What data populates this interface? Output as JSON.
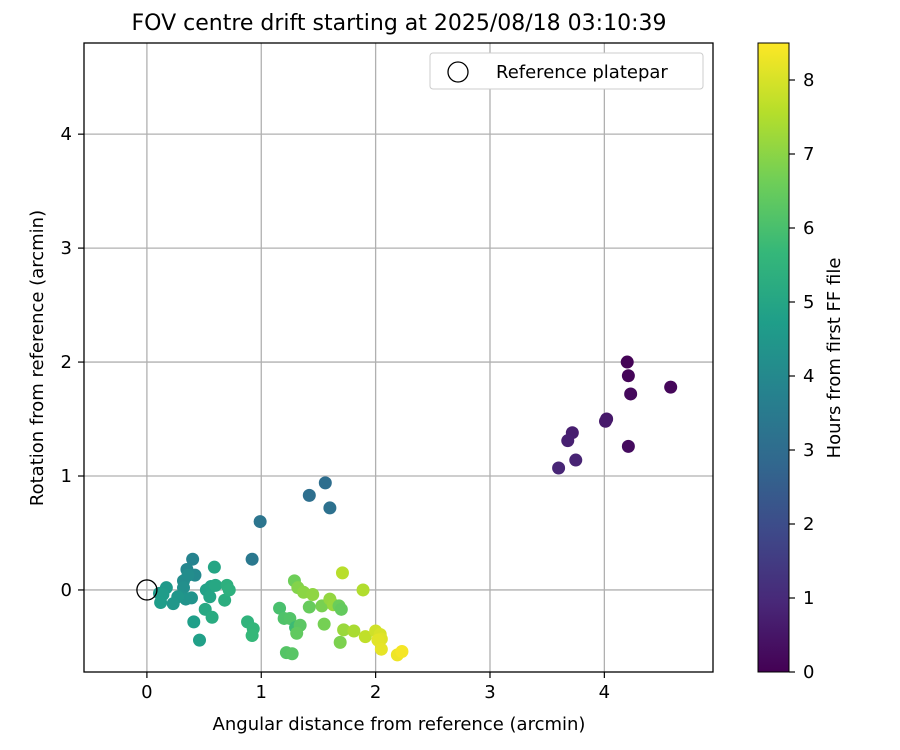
{
  "chart_data": {
    "type": "scatter",
    "title": "FOV centre drift starting at 2025/08/18 03:10:39",
    "xlabel": "Angular distance from reference (arcmin)",
    "ylabel": "Rotation from reference (arcmin)",
    "xlim": [
      -0.55,
      4.95
    ],
    "ylim": [
      -0.72,
      4.8
    ],
    "xticks": [
      0,
      1,
      2,
      3,
      4
    ],
    "yticks": [
      0,
      1,
      2,
      3,
      4
    ],
    "grid": true,
    "legend": {
      "placement": "top-right",
      "entries": [
        "Reference platepar"
      ]
    },
    "reference_point": {
      "name": "Reference platepar",
      "x": 0,
      "y": 0
    },
    "colorbar": {
      "label": "Hours from first FF file",
      "colormap": "viridis",
      "range": [
        0,
        8.5
      ],
      "ticks": [
        0,
        1,
        2,
        3,
        4,
        5,
        6,
        7,
        8
      ],
      "colors": [
        "#440154",
        "#482878",
        "#3e4989",
        "#31688e",
        "#26828e",
        "#1f9e89",
        "#35b779",
        "#6ece58",
        "#b5de2b",
        "#fde725"
      ]
    },
    "points": [
      {
        "x": 4.2,
        "y": 2.0,
        "c": 0.05
      },
      {
        "x": 4.21,
        "y": 1.88,
        "c": 0.1
      },
      {
        "x": 4.58,
        "y": 1.78,
        "c": 0.15
      },
      {
        "x": 4.23,
        "y": 1.72,
        "c": 0.2
      },
      {
        "x": 4.21,
        "y": 1.26,
        "c": 0.25
      },
      {
        "x": 4.02,
        "y": 1.5,
        "c": 0.55
      },
      {
        "x": 4.01,
        "y": 1.48,
        "c": 0.6
      },
      {
        "x": 3.72,
        "y": 1.38,
        "c": 0.7
      },
      {
        "x": 3.68,
        "y": 1.31,
        "c": 0.75
      },
      {
        "x": 3.75,
        "y": 1.14,
        "c": 0.85
      },
      {
        "x": 3.6,
        "y": 1.07,
        "c": 0.9
      },
      {
        "x": 1.56,
        "y": 0.94,
        "c": 3.05
      },
      {
        "x": 1.42,
        "y": 0.83,
        "c": 3.1
      },
      {
        "x": 1.6,
        "y": 0.72,
        "c": 3.15
      },
      {
        "x": 0.99,
        "y": 0.6,
        "c": 3.3
      },
      {
        "x": 0.92,
        "y": 0.27,
        "c": 3.4
      },
      {
        "x": 0.4,
        "y": 0.27,
        "c": 3.8
      },
      {
        "x": 0.35,
        "y": 0.18,
        "c": 3.9
      },
      {
        "x": 0.42,
        "y": 0.13,
        "c": 4.0
      },
      {
        "x": 0.32,
        "y": 0.08,
        "c": 4.1
      },
      {
        "x": 0.36,
        "y": 0.13,
        "c": 4.15
      },
      {
        "x": 0.32,
        "y": 0.02,
        "c": 4.2
      },
      {
        "x": 0.3,
        "y": -0.05,
        "c": 4.3
      },
      {
        "x": 0.34,
        "y": -0.08,
        "c": 4.35
      },
      {
        "x": 0.39,
        "y": -0.07,
        "c": 4.4
      },
      {
        "x": 0.27,
        "y": -0.06,
        "c": 4.45
      },
      {
        "x": 0.23,
        "y": -0.12,
        "c": 4.5
      },
      {
        "x": 0.17,
        "y": 0.02,
        "c": 4.55
      },
      {
        "x": 0.11,
        "y": -0.03,
        "c": 4.6
      },
      {
        "x": 0.14,
        "y": -0.04,
        "c": 4.65
      },
      {
        "x": 0.12,
        "y": -0.11,
        "c": 4.7
      },
      {
        "x": 0.41,
        "y": -0.28,
        "c": 4.75
      },
      {
        "x": 0.46,
        "y": -0.44,
        "c": 4.8
      },
      {
        "x": 0.52,
        "y": 0.0,
        "c": 4.85
      },
      {
        "x": 0.56,
        "y": 0.03,
        "c": 4.9
      },
      {
        "x": 0.55,
        "y": -0.06,
        "c": 4.95
      },
      {
        "x": 0.59,
        "y": 0.2,
        "c": 5.0
      },
      {
        "x": 0.6,
        "y": 0.04,
        "c": 5.05
      },
      {
        "x": 0.51,
        "y": -0.17,
        "c": 5.1
      },
      {
        "x": 0.57,
        "y": -0.24,
        "c": 5.2
      },
      {
        "x": 0.68,
        "y": -0.09,
        "c": 5.3
      },
      {
        "x": 0.7,
        "y": 0.04,
        "c": 5.35
      },
      {
        "x": 0.72,
        "y": 0.0,
        "c": 5.4
      },
      {
        "x": 0.88,
        "y": -0.28,
        "c": 5.5
      },
      {
        "x": 0.93,
        "y": -0.34,
        "c": 5.6
      },
      {
        "x": 0.92,
        "y": -0.4,
        "c": 5.65
      },
      {
        "x": 1.16,
        "y": -0.16,
        "c": 6.0
      },
      {
        "x": 1.2,
        "y": -0.25,
        "c": 6.1
      },
      {
        "x": 1.25,
        "y": -0.25,
        "c": 6.15
      },
      {
        "x": 1.22,
        "y": -0.55,
        "c": 6.2
      },
      {
        "x": 1.27,
        "y": -0.56,
        "c": 6.25
      },
      {
        "x": 1.3,
        "y": -0.33,
        "c": 5.8
      },
      {
        "x": 1.34,
        "y": -0.31,
        "c": 6.3
      },
      {
        "x": 1.31,
        "y": -0.38,
        "c": 6.4
      },
      {
        "x": 1.29,
        "y": 0.08,
        "c": 6.6
      },
      {
        "x": 1.42,
        "y": -0.15,
        "c": 6.5
      },
      {
        "x": 1.55,
        "y": -0.3,
        "c": 6.7
      },
      {
        "x": 1.32,
        "y": 0.02,
        "c": 6.9
      },
      {
        "x": 1.37,
        "y": -0.02,
        "c": 7.0
      },
      {
        "x": 1.45,
        "y": -0.04,
        "c": 7.05
      },
      {
        "x": 1.53,
        "y": -0.14,
        "c": 6.75
      },
      {
        "x": 1.6,
        "y": -0.08,
        "c": 7.1
      },
      {
        "x": 1.63,
        "y": -0.13,
        "c": 7.15
      },
      {
        "x": 1.68,
        "y": -0.14,
        "c": 6.55
      },
      {
        "x": 1.7,
        "y": -0.17,
        "c": 6.45
      },
      {
        "x": 1.69,
        "y": -0.46,
        "c": 6.8
      },
      {
        "x": 1.72,
        "y": -0.35,
        "c": 7.2
      },
      {
        "x": 1.71,
        "y": 0.15,
        "c": 7.6
      },
      {
        "x": 1.81,
        "y": -0.36,
        "c": 7.4
      },
      {
        "x": 1.89,
        "y": 0.0,
        "c": 7.5
      },
      {
        "x": 1.91,
        "y": -0.41,
        "c": 7.7
      },
      {
        "x": 2.0,
        "y": -0.36,
        "c": 7.9
      },
      {
        "x": 2.04,
        "y": -0.39,
        "c": 8.0
      },
      {
        "x": 2.05,
        "y": -0.43,
        "c": 8.1
      },
      {
        "x": 2.02,
        "y": -0.44,
        "c": 8.15
      },
      {
        "x": 2.05,
        "y": -0.52,
        "c": 8.2
      },
      {
        "x": 2.19,
        "y": -0.57,
        "c": 8.3
      },
      {
        "x": 2.23,
        "y": -0.54,
        "c": 8.4
      }
    ]
  }
}
